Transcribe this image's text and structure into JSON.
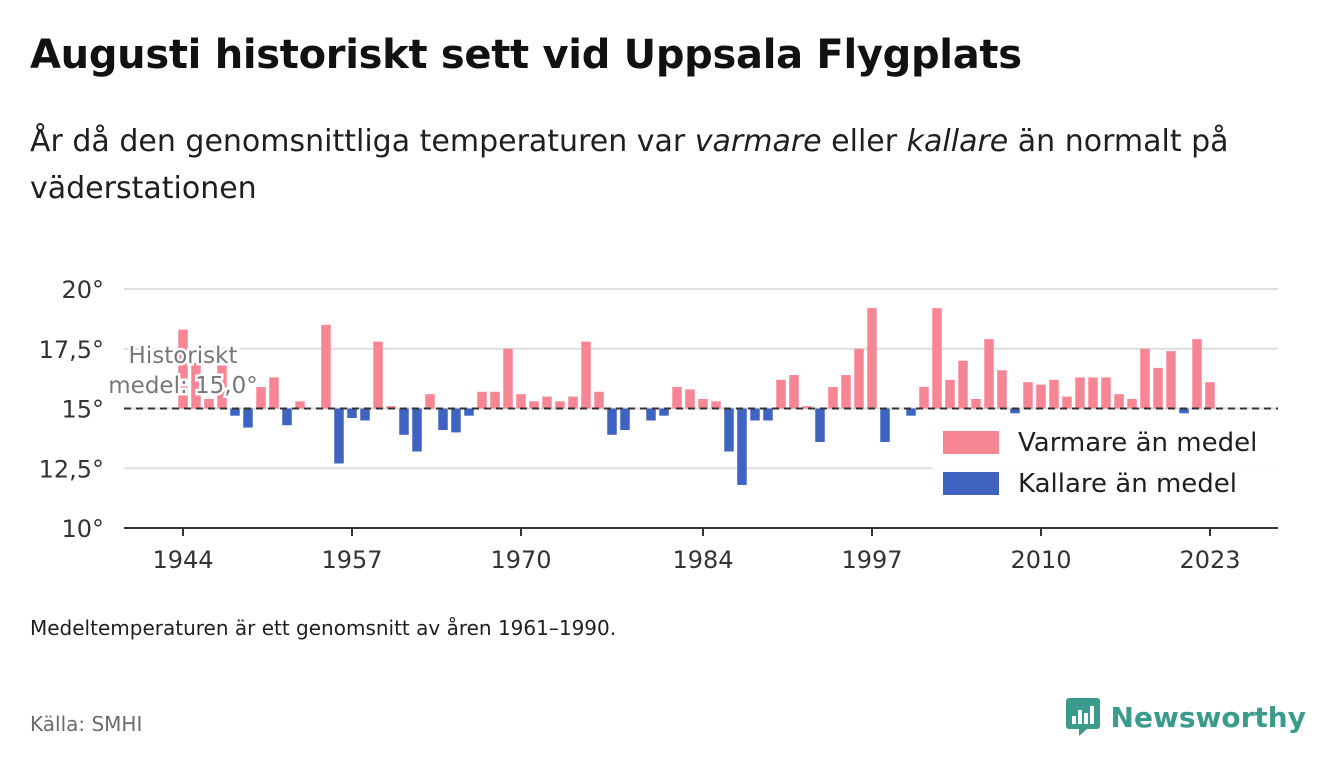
{
  "header": {
    "title": "Augusti historiskt sett vid Uppsala Flygplats",
    "subtitle_pre": "År då den genomsnittliga temperaturen var ",
    "subtitle_warm": "varmare",
    "subtitle_mid": " eller ",
    "subtitle_cold": "kallare",
    "subtitle_post": " än normalt på väderstationen"
  },
  "footer": {
    "note": "Medeltemperaturen är ett genomsnitt av åren 1961–1990.",
    "source": "Källa: SMHI",
    "brand": "Newsworthy"
  },
  "colors": {
    "warm": "#f78695",
    "cold": "#3f63c1",
    "brand": "#3a9a8c"
  },
  "chart_data": {
    "type": "bar",
    "baseline": 15.0,
    "baseline_label_line1": "Historiskt",
    "baseline_label_line2": "medel: 15,0°",
    "ylim": [
      10,
      20
    ],
    "y_ticks": [
      10,
      12.5,
      15,
      17.5,
      20
    ],
    "y_tick_labels": [
      "10°",
      "12,5°",
      "15°",
      "17,5°",
      "20°"
    ],
    "x_tick_years": [
      1944,
      1957,
      1970,
      1984,
      1997,
      2010,
      2023
    ],
    "x_tick_labels": [
      "1944",
      "1957",
      "1970",
      "1984",
      "1997",
      "2010",
      "2023"
    ],
    "legend": {
      "warm": "Varmare än medel",
      "cold": "Kallare än medel",
      "position": "right"
    },
    "categories": [
      1944,
      1945,
      1946,
      1947,
      1948,
      1949,
      1950,
      1951,
      1952,
      1953,
      1954,
      1955,
      1956,
      1957,
      1958,
      1959,
      1960,
      1961,
      1962,
      1963,
      1964,
      1965,
      1966,
      1967,
      1968,
      1969,
      1970,
      1971,
      1972,
      1973,
      1974,
      1975,
      1976,
      1977,
      1978,
      1979,
      1980,
      1981,
      1982,
      1983,
      1984,
      1985,
      1986,
      1987,
      1988,
      1989,
      1990,
      1991,
      1992,
      1993,
      1994,
      1995,
      1996,
      1997,
      1998,
      1999,
      2000,
      2001,
      2002,
      2003,
      2004,
      2005,
      2006,
      2007,
      2008,
      2009,
      2010,
      2011,
      2012,
      2013,
      2014,
      2015,
      2016,
      2017,
      2018,
      2019,
      2020,
      2021,
      2022,
      2023,
      2024
    ],
    "values": [
      18.3,
      16.9,
      15.4,
      16.8,
      14.7,
      14.2,
      15.9,
      16.3,
      14.3,
      15.3,
      15.0,
      18.5,
      12.7,
      14.6,
      14.5,
      17.8,
      15.1,
      13.9,
      13.2,
      15.6,
      14.1,
      14.0,
      14.7,
      15.7,
      15.7,
      17.5,
      15.6,
      15.3,
      15.5,
      15.3,
      15.5,
      17.8,
      15.7,
      13.9,
      14.1,
      15.0,
      14.5,
      14.7,
      15.9,
      15.8,
      15.4,
      15.3,
      13.2,
      11.8,
      14.5,
      14.5,
      16.2,
      16.4,
      15.1,
      13.6,
      15.9,
      16.4,
      17.5,
      19.2,
      13.6,
      15.0,
      14.7,
      15.9,
      19.2,
      16.2,
      17.0,
      15.4,
      17.9,
      16.6,
      14.8,
      16.1,
      16.0,
      16.2,
      15.5,
      16.3,
      16.3,
      16.3,
      15.6,
      15.4,
      17.5,
      16.7,
      17.4,
      14.8,
      17.9,
      16.1,
      15.0
    ]
  }
}
